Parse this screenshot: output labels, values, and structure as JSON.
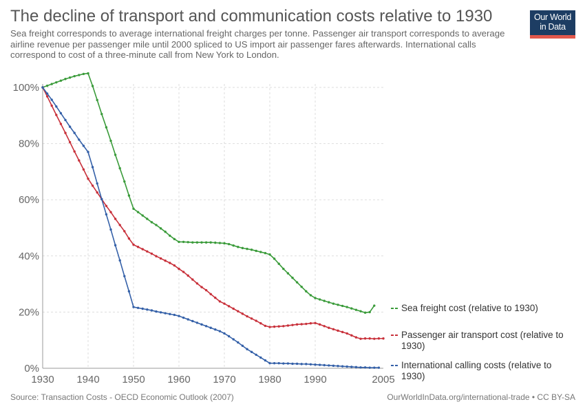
{
  "header": {
    "title": "The decline of transport and communication costs relative to 1930",
    "subtitle": "Sea freight corresponds to average international freight charges per tonne. Passenger air transport corresponds to average airline revenue per passenger mile until 2000 spliced to US import air passenger fares afterwards. International calls correspond to cost of a three-minute call from New York to London.",
    "logo_line1": "Our World",
    "logo_line2": "in Data"
  },
  "footer": {
    "source": "Source: Transaction Costs - OECD Economic Outlook (2007)",
    "credit": "OurWorldInData.org/international-trade • CC BY-SA"
  },
  "colors": {
    "sea": "#3a9b3a",
    "air": "#c8303a",
    "calls": "#3460a8",
    "grid": "#dddddd",
    "axis": "#999999",
    "logo_bg": "#1d3d63",
    "logo_bar": "#e2584c"
  },
  "chart_data": {
    "type": "line",
    "title": "The decline of transport and communication costs relative to 1930",
    "xlabel": "",
    "ylabel": "",
    "xlim": [
      1930,
      2005
    ],
    "ylim": [
      0,
      100
    ],
    "x_ticks": [
      "1930",
      "1940",
      "1950",
      "1960",
      "1970",
      "1980",
      "1990",
      "2005"
    ],
    "x_tick_values": [
      1930,
      1940,
      1950,
      1960,
      1970,
      1980,
      1990,
      2005
    ],
    "y_ticks": [
      "0%",
      "20%",
      "40%",
      "60%",
      "80%",
      "100%"
    ],
    "y_tick_values": [
      0,
      20,
      40,
      60,
      80,
      100
    ],
    "grid": true,
    "legend_position": "right, labels at line ends",
    "series": [
      {
        "name": "Sea freight cost (relative to 1930)",
        "key": "sea",
        "points": [
          [
            1930,
            100
          ],
          [
            1931,
            100.6
          ],
          [
            1932,
            101.2
          ],
          [
            1933,
            101.8
          ],
          [
            1934,
            102.4
          ],
          [
            1935,
            103
          ],
          [
            1936,
            103.5
          ],
          [
            1937,
            104
          ],
          [
            1938,
            104.4
          ],
          [
            1939,
            104.8
          ],
          [
            1940,
            105
          ],
          [
            1941,
            100.5
          ],
          [
            1942,
            95.5
          ],
          [
            1943,
            90.5
          ],
          [
            1944,
            85.8
          ],
          [
            1945,
            81
          ],
          [
            1946,
            76
          ],
          [
            1947,
            71.2
          ],
          [
            1948,
            66.5
          ],
          [
            1949,
            61.5
          ],
          [
            1950,
            56.8
          ],
          [
            1951,
            55.6
          ],
          [
            1952,
            54.4
          ],
          [
            1953,
            53.2
          ],
          [
            1954,
            52
          ],
          [
            1955,
            51
          ],
          [
            1956,
            49.8
          ],
          [
            1957,
            48.6
          ],
          [
            1958,
            47.2
          ],
          [
            1959,
            46
          ],
          [
            1960,
            45
          ],
          [
            1961,
            45
          ],
          [
            1962,
            44.9
          ],
          [
            1963,
            44.8
          ],
          [
            1964,
            44.8
          ],
          [
            1965,
            44.8
          ],
          [
            1966,
            44.8
          ],
          [
            1967,
            44.8
          ],
          [
            1968,
            44.7
          ],
          [
            1969,
            44.6
          ],
          [
            1970,
            44.5
          ],
          [
            1971,
            44.2
          ],
          [
            1972,
            43.7
          ],
          [
            1973,
            43.2
          ],
          [
            1974,
            42.8
          ],
          [
            1975,
            42.5
          ],
          [
            1976,
            42.2
          ],
          [
            1977,
            41.8
          ],
          [
            1978,
            41.4
          ],
          [
            1979,
            41
          ],
          [
            1980,
            40.5
          ],
          [
            1981,
            39
          ],
          [
            1982,
            37.2
          ],
          [
            1983,
            35.4
          ],
          [
            1984,
            33.8
          ],
          [
            1985,
            32.2
          ],
          [
            1986,
            30.6
          ],
          [
            1987,
            29
          ],
          [
            1988,
            27.4
          ],
          [
            1989,
            26
          ],
          [
            1990,
            25
          ],
          [
            1991,
            24.5
          ],
          [
            1992,
            24
          ],
          [
            1993,
            23.5
          ],
          [
            1994,
            23
          ],
          [
            1995,
            22.6
          ],
          [
            1996,
            22.2
          ],
          [
            1997,
            21.8
          ],
          [
            1998,
            21.3
          ],
          [
            1999,
            20.8
          ],
          [
            2000,
            20.3
          ],
          [
            2001,
            19.8
          ],
          [
            2002,
            20
          ],
          [
            2003,
            22.3
          ]
        ]
      },
      {
        "name": "Passenger air transport cost (relative to 1930)",
        "key": "air",
        "points": [
          [
            1930,
            100
          ],
          [
            1931,
            96.8
          ],
          [
            1932,
            93.5
          ],
          [
            1933,
            90.2
          ],
          [
            1934,
            87
          ],
          [
            1935,
            83.8
          ],
          [
            1936,
            80.5
          ],
          [
            1937,
            77.2
          ],
          [
            1938,
            74
          ],
          [
            1939,
            70.8
          ],
          [
            1940,
            67.5
          ],
          [
            1941,
            65
          ],
          [
            1942,
            62.6
          ],
          [
            1943,
            60.2
          ],
          [
            1944,
            57.8
          ],
          [
            1945,
            55.6
          ],
          [
            1946,
            53.2
          ],
          [
            1947,
            51
          ],
          [
            1948,
            48.8
          ],
          [
            1949,
            46.2
          ],
          [
            1950,
            44
          ],
          [
            1951,
            43.2
          ],
          [
            1952,
            42.4
          ],
          [
            1953,
            41.6
          ],
          [
            1954,
            40.8
          ],
          [
            1955,
            39.9
          ],
          [
            1956,
            39.1
          ],
          [
            1957,
            38.3
          ],
          [
            1958,
            37.5
          ],
          [
            1959,
            36.6
          ],
          [
            1960,
            35.4
          ],
          [
            1961,
            34.3
          ],
          [
            1962,
            33
          ],
          [
            1963,
            31.6
          ],
          [
            1964,
            30.2
          ],
          [
            1965,
            28.9
          ],
          [
            1966,
            27.8
          ],
          [
            1967,
            26.4
          ],
          [
            1968,
            25.1
          ],
          [
            1969,
            23.8
          ],
          [
            1970,
            23
          ],
          [
            1971,
            22.1
          ],
          [
            1972,
            21.2
          ],
          [
            1973,
            20.3
          ],
          [
            1974,
            19.4
          ],
          [
            1975,
            18.5
          ],
          [
            1976,
            17.7
          ],
          [
            1977,
            16.9
          ],
          [
            1978,
            16
          ],
          [
            1979,
            15.1
          ],
          [
            1980,
            14.7
          ],
          [
            1981,
            14.8
          ],
          [
            1982,
            14.9
          ],
          [
            1983,
            15
          ],
          [
            1984,
            15.2
          ],
          [
            1985,
            15.4
          ],
          [
            1986,
            15.6
          ],
          [
            1987,
            15.7
          ],
          [
            1988,
            15.8
          ],
          [
            1989,
            16
          ],
          [
            1990,
            16.1
          ],
          [
            1991,
            15.6
          ],
          [
            1992,
            15
          ],
          [
            1993,
            14.4
          ],
          [
            1994,
            13.9
          ],
          [
            1995,
            13.4
          ],
          [
            1996,
            12.9
          ],
          [
            1997,
            12.4
          ],
          [
            1998,
            11.7
          ],
          [
            1999,
            11
          ],
          [
            2000,
            10.5
          ],
          [
            2001,
            10.6
          ],
          [
            2002,
            10.6
          ],
          [
            2003,
            10.5
          ],
          [
            2004,
            10.6
          ],
          [
            2005,
            10.6
          ]
        ]
      },
      {
        "name": "International calling costs (relative to 1930)",
        "key": "calls",
        "points": [
          [
            1930,
            100
          ],
          [
            1931,
            97.8
          ],
          [
            1932,
            95.6
          ],
          [
            1933,
            93.2
          ],
          [
            1934,
            90.8
          ],
          [
            1935,
            88.4
          ],
          [
            1936,
            86
          ],
          [
            1937,
            83.8
          ],
          [
            1938,
            81.4
          ],
          [
            1939,
            79.2
          ],
          [
            1940,
            77
          ],
          [
            1941,
            71.6
          ],
          [
            1942,
            65.8
          ],
          [
            1943,
            60.2
          ],
          [
            1944,
            54.8
          ],
          [
            1945,
            49.4
          ],
          [
            1946,
            43.8
          ],
          [
            1947,
            38.4
          ],
          [
            1948,
            32.8
          ],
          [
            1949,
            27.4
          ],
          [
            1950,
            21.8
          ],
          [
            1951,
            21.5
          ],
          [
            1952,
            21.2
          ],
          [
            1953,
            20.9
          ],
          [
            1954,
            20.6
          ],
          [
            1955,
            20.2
          ],
          [
            1956,
            19.9
          ],
          [
            1957,
            19.6
          ],
          [
            1958,
            19.3
          ],
          [
            1959,
            19
          ],
          [
            1960,
            18.6
          ],
          [
            1961,
            18
          ],
          [
            1962,
            17.4
          ],
          [
            1963,
            16.8
          ],
          [
            1964,
            16.2
          ],
          [
            1965,
            15.6
          ],
          [
            1966,
            15
          ],
          [
            1967,
            14.4
          ],
          [
            1968,
            13.8
          ],
          [
            1969,
            13.2
          ],
          [
            1970,
            12.4
          ],
          [
            1971,
            11.4
          ],
          [
            1972,
            10.3
          ],
          [
            1973,
            9.2
          ],
          [
            1974,
            8
          ],
          [
            1975,
            6.8
          ],
          [
            1976,
            5.8
          ],
          [
            1977,
            4.8
          ],
          [
            1978,
            3.8
          ],
          [
            1979,
            2.8
          ],
          [
            1980,
            1.8
          ],
          [
            1981,
            1.8
          ],
          [
            1982,
            1.8
          ],
          [
            1983,
            1.7
          ],
          [
            1984,
            1.7
          ],
          [
            1985,
            1.6
          ],
          [
            1986,
            1.6
          ],
          [
            1987,
            1.5
          ],
          [
            1988,
            1.5
          ],
          [
            1989,
            1.4
          ],
          [
            1990,
            1.3
          ],
          [
            1991,
            1.2
          ],
          [
            1992,
            1.1
          ],
          [
            1993,
            1
          ],
          [
            1994,
            0.9
          ],
          [
            1995,
            0.8
          ],
          [
            1996,
            0.7
          ],
          [
            1997,
            0.6
          ],
          [
            1998,
            0.5
          ],
          [
            1999,
            0.4
          ],
          [
            2000,
            0.3
          ],
          [
            2001,
            0.3
          ],
          [
            2002,
            0.2
          ],
          [
            2003,
            0.2
          ],
          [
            2004,
            0.2
          ]
        ]
      }
    ]
  }
}
